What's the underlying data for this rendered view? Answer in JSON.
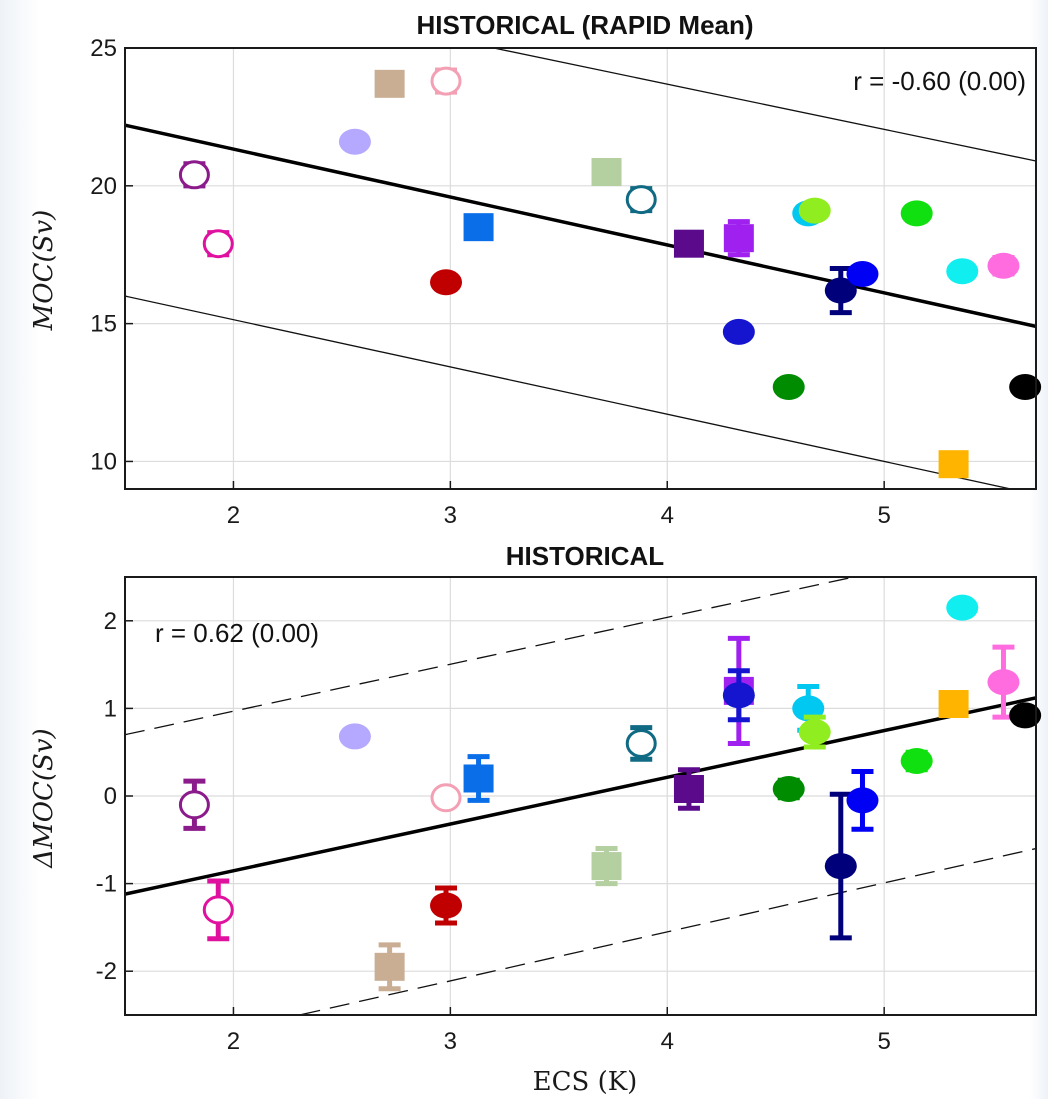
{
  "chart_data": [
    {
      "type": "scatter",
      "title": "HISTORICAL (RAPID Mean)",
      "xlabel": "",
      "ylabel": "MOC(Sv)",
      "xlim": [
        1.5,
        5.7
      ],
      "ylim": [
        9,
        25
      ],
      "xticks": [
        "2",
        "3",
        "4",
        "5"
      ],
      "yticks": [
        "10",
        "15",
        "20",
        "25"
      ],
      "grid": true,
      "annotation": "r = -0.60 (0.00)",
      "regression": {
        "x": [
          1.5,
          5.7
        ],
        "y": [
          22.2,
          14.9
        ]
      },
      "bounds": [
        {
          "x": [
            1.5,
            5.7
          ],
          "y": [
            16.0,
            8.8
          ],
          "style": "solid"
        },
        {
          "x": [
            3.2,
            5.7
          ],
          "y": [
            25.0,
            20.9
          ],
          "style": "solid"
        }
      ],
      "points": [
        {
          "x": 1.82,
          "y": 20.4,
          "err": 0.4,
          "marker": "circle",
          "open": true,
          "color": "#8b1a8b"
        },
        {
          "x": 1.93,
          "y": 17.9,
          "err": 0.4,
          "marker": "circle",
          "open": true,
          "color": "#e0119f"
        },
        {
          "x": 2.56,
          "y": 21.6,
          "err": 0,
          "marker": "circle",
          "open": false,
          "color": "#b4a8ff"
        },
        {
          "x": 2.72,
          "y": 23.7,
          "err": 0,
          "marker": "square",
          "open": false,
          "color": "#c9ae94"
        },
        {
          "x": 2.98,
          "y": 23.8,
          "err": 0.4,
          "marker": "circle",
          "open": true,
          "color": "#f4a0b4"
        },
        {
          "x": 2.98,
          "y": 16.5,
          "err": 0,
          "marker": "circle",
          "open": false,
          "color": "#c00000"
        },
        {
          "x": 3.13,
          "y": 18.5,
          "err": 0,
          "marker": "square",
          "open": false,
          "color": "#0a6ee8"
        },
        {
          "x": 3.72,
          "y": 20.5,
          "err": 0,
          "marker": "square",
          "open": false,
          "color": "#b4cfa0"
        },
        {
          "x": 3.88,
          "y": 19.5,
          "err": 0.4,
          "marker": "circle",
          "open": true,
          "color": "#106a84"
        },
        {
          "x": 4.1,
          "y": 17.9,
          "err": 0,
          "marker": "square",
          "open": false,
          "color": "#5a0a8a"
        },
        {
          "x": 4.33,
          "y": 18.1,
          "err": 0.6,
          "marker": "square",
          "open": false,
          "color": "#a020f0"
        },
        {
          "x": 4.33,
          "y": 14.7,
          "err": 0,
          "marker": "circle",
          "open": false,
          "color": "#1515d0"
        },
        {
          "x": 4.56,
          "y": 12.7,
          "err": 0,
          "marker": "circle",
          "open": false,
          "color": "#008c00"
        },
        {
          "x": 4.65,
          "y": 19.0,
          "err": 0,
          "marker": "circle",
          "open": false,
          "color": "#00c8f0"
        },
        {
          "x": 4.68,
          "y": 19.1,
          "err": 0,
          "marker": "circle",
          "open": false,
          "color": "#90ee20"
        },
        {
          "x": 4.8,
          "y": 16.2,
          "err": 0.8,
          "marker": "circle",
          "open": false,
          "color": "#00007a"
        },
        {
          "x": 4.9,
          "y": 16.8,
          "err": 0,
          "marker": "circle",
          "open": false,
          "color": "#0000f5"
        },
        {
          "x": 5.15,
          "y": 19.0,
          "err": 0,
          "marker": "circle",
          "open": false,
          "color": "#10e010"
        },
        {
          "x": 5.32,
          "y": 9.9,
          "err": 0,
          "marker": "square",
          "open": false,
          "color": "#ffb400"
        },
        {
          "x": 5.36,
          "y": 16.9,
          "err": 0,
          "marker": "circle",
          "open": false,
          "color": "#10eef0"
        },
        {
          "x": 5.55,
          "y": 17.1,
          "err": 0.3,
          "marker": "circle",
          "open": false,
          "color": "#ff6ce0"
        },
        {
          "x": 5.65,
          "y": 12.7,
          "err": 0,
          "marker": "circle",
          "open": false,
          "color": "#000000"
        }
      ]
    },
    {
      "type": "scatter",
      "title": "HISTORICAL",
      "xlabel": "ECS (K)",
      "ylabel": "ΔMOC(Sv)",
      "xlim": [
        1.5,
        5.7
      ],
      "ylim": [
        -2.5,
        2.5
      ],
      "xticks": [
        "2",
        "3",
        "4",
        "5"
      ],
      "yticks": [
        "-2",
        "-1",
        "0",
        "1",
        "2"
      ],
      "grid": true,
      "annotation": "r = 0.62 (0.00)",
      "regression": {
        "x": [
          1.5,
          5.7
        ],
        "y": [
          -1.12,
          1.12
        ]
      },
      "bounds": [
        {
          "x": [
            1.5,
            5.7
          ],
          "y": [
            0.7,
            2.95
          ],
          "style": "dashed"
        },
        {
          "x": [
            1.5,
            5.7
          ],
          "y": [
            -2.95,
            -0.6
          ],
          "style": "dashed"
        }
      ],
      "points": [
        {
          "x": 1.82,
          "y": -0.1,
          "err": 0.27,
          "marker": "circle",
          "open": true,
          "color": "#8b1a8b"
        },
        {
          "x": 1.93,
          "y": -1.3,
          "err": 0.33,
          "marker": "circle",
          "open": true,
          "color": "#e0119f"
        },
        {
          "x": 2.56,
          "y": 0.68,
          "err": 0,
          "marker": "circle",
          "open": false,
          "color": "#b4a8ff"
        },
        {
          "x": 2.72,
          "y": -1.95,
          "err": 0.25,
          "marker": "square",
          "open": false,
          "color": "#c9ae94"
        },
        {
          "x": 2.98,
          "y": -0.02,
          "err": 0.05,
          "marker": "circle",
          "open": true,
          "color": "#f4a0b4"
        },
        {
          "x": 2.98,
          "y": -1.25,
          "err": 0.2,
          "marker": "circle",
          "open": false,
          "color": "#c00000"
        },
        {
          "x": 3.13,
          "y": 0.2,
          "err": 0.25,
          "marker": "square",
          "open": false,
          "color": "#0a6ee8"
        },
        {
          "x": 3.72,
          "y": -0.8,
          "err": 0.2,
          "marker": "square",
          "open": false,
          "color": "#b4cfa0"
        },
        {
          "x": 3.88,
          "y": 0.6,
          "err": 0.18,
          "marker": "circle",
          "open": true,
          "color": "#106a84"
        },
        {
          "x": 4.1,
          "y": 0.08,
          "err": 0.22,
          "marker": "square",
          "open": false,
          "color": "#5a0a8a"
        },
        {
          "x": 4.33,
          "y": 1.2,
          "err": 0.6,
          "marker": "square",
          "open": false,
          "color": "#a020f0"
        },
        {
          "x": 4.33,
          "y": 1.15,
          "err": 0.28,
          "marker": "circle",
          "open": false,
          "color": "#1515d0"
        },
        {
          "x": 4.56,
          "y": 0.08,
          "err": 0.1,
          "marker": "circle",
          "open": false,
          "color": "#008c00"
        },
        {
          "x": 4.65,
          "y": 1.0,
          "err": 0.25,
          "marker": "circle",
          "open": false,
          "color": "#00c8f0"
        },
        {
          "x": 4.68,
          "y": 0.73,
          "err": 0.17,
          "marker": "circle",
          "open": false,
          "color": "#90ee20"
        },
        {
          "x": 4.8,
          "y": -0.8,
          "err": 0.82,
          "marker": "circle",
          "open": false,
          "color": "#00007a"
        },
        {
          "x": 4.9,
          "y": -0.05,
          "err": 0.33,
          "marker": "circle",
          "open": false,
          "color": "#0000f5"
        },
        {
          "x": 5.15,
          "y": 0.4,
          "err": 0.1,
          "marker": "circle",
          "open": false,
          "color": "#10e010"
        },
        {
          "x": 5.32,
          "y": 1.05,
          "err": 0,
          "marker": "square",
          "open": false,
          "color": "#ffb400"
        },
        {
          "x": 5.36,
          "y": 2.15,
          "err": 0,
          "marker": "circle",
          "open": false,
          "color": "#10eef0"
        },
        {
          "x": 5.55,
          "y": 1.3,
          "err": 0.4,
          "marker": "circle",
          "open": false,
          "color": "#ff6ce0"
        },
        {
          "x": 5.65,
          "y": 0.92,
          "err": 0,
          "marker": "circle",
          "open": false,
          "color": "#000000"
        }
      ]
    }
  ]
}
